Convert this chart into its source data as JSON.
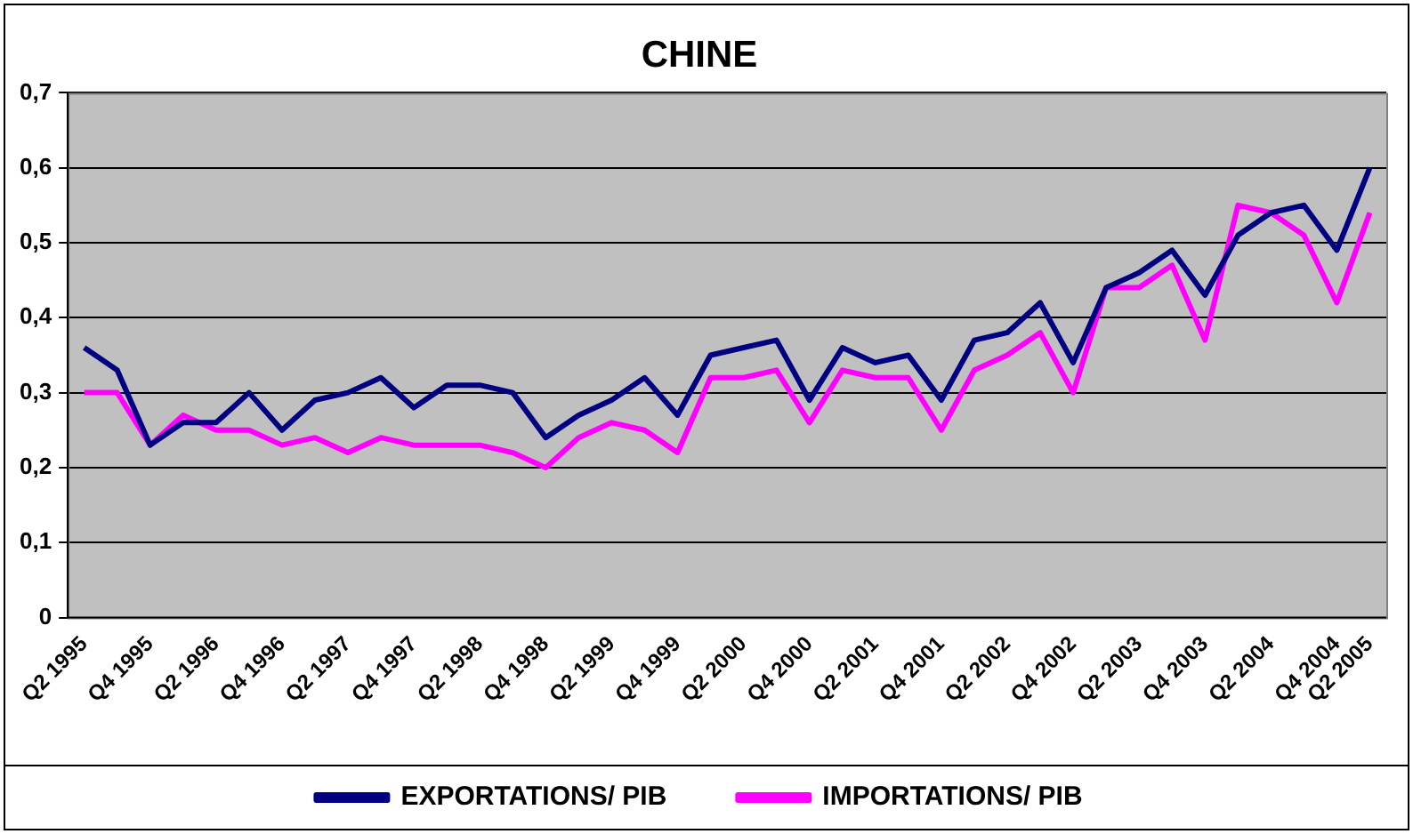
{
  "chart_data": {
    "type": "line",
    "title": "CHINE",
    "categories": [
      "Q2 1995",
      null,
      "Q4 1995",
      null,
      "Q2 1996",
      null,
      "Q4 1996",
      null,
      "Q2 1997",
      null,
      "Q4 1997",
      null,
      "Q2 1998",
      null,
      "Q4 1998",
      null,
      "Q2 1999",
      null,
      "Q4 1999",
      null,
      "Q2 2000",
      null,
      "Q4 2000",
      null,
      "Q2 2001",
      null,
      "Q4 2001",
      null,
      "Q2 2002",
      null,
      "Q4 2002",
      null,
      "Q2 2003",
      null,
      "Q4 2003",
      null,
      "Q2 2004",
      null,
      "Q4 2004",
      "Q2 2005"
    ],
    "series": [
      {
        "name": "EXPORTATIONS/ PIB",
        "color": "#000080",
        "values": [
          0.36,
          0.33,
          0.23,
          0.26,
          0.26,
          0.3,
          0.25,
          0.29,
          0.3,
          0.32,
          0.28,
          0.31,
          0.31,
          0.3,
          0.24,
          0.27,
          0.29,
          0.32,
          0.27,
          0.35,
          0.36,
          0.37,
          0.29,
          0.36,
          0.34,
          0.35,
          0.29,
          0.37,
          0.38,
          0.42,
          0.34,
          0.44,
          0.46,
          0.49,
          0.43,
          0.51,
          0.54,
          0.55,
          0.49,
          0.6
        ]
      },
      {
        "name": "IMPORTATIONS/ PIB",
        "color": "#ff00ff",
        "values": [
          0.3,
          0.3,
          0.23,
          0.27,
          0.25,
          0.25,
          0.23,
          0.24,
          0.22,
          0.24,
          0.23,
          0.23,
          0.23,
          0.22,
          0.2,
          0.24,
          0.26,
          0.25,
          0.22,
          0.32,
          0.32,
          0.33,
          0.26,
          0.33,
          0.32,
          0.32,
          0.25,
          0.33,
          0.35,
          0.38,
          0.3,
          0.44,
          0.44,
          0.47,
          0.37,
          0.55,
          0.54,
          0.51,
          0.42,
          0.54
        ]
      }
    ],
    "ylim": [
      0,
      0.7
    ],
    "yticks": [
      {
        "value": 0,
        "label": "0"
      },
      {
        "value": 0.1,
        "label": "0,1"
      },
      {
        "value": 0.2,
        "label": "0,2"
      },
      {
        "value": 0.3,
        "label": "0,3"
      },
      {
        "value": 0.4,
        "label": "0,4"
      },
      {
        "value": 0.5,
        "label": "0,5"
      },
      {
        "value": 0.6,
        "label": "0,6"
      },
      {
        "value": 0.7,
        "label": "0,7"
      }
    ],
    "grid": "y",
    "legend": "bottom",
    "marker": "none",
    "line_style": "solid"
  }
}
